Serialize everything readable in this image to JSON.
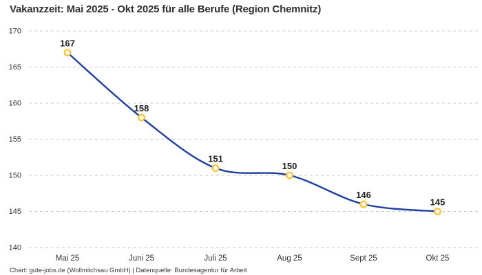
{
  "title": "Vakanzzeit: Mai 2025 - Okt 2025 für alle Berufe (Region Chemnitz)",
  "footer": "Chart: gute-jobs.de (Wollmilchsau GmbH) | Datenquelle: Bundesagentur für Arbeit",
  "colors": {
    "line": "#1e3f9f",
    "marker_ring": "#fdc12d",
    "marker_fill": "#ffffff",
    "grid": "#c9c9c9",
    "axis_text": "#333333",
    "value_label": "#1d1d1d",
    "title_text": "#2f2f2f"
  },
  "chart_data": {
    "type": "line",
    "title": "Vakanzzeit: Mai 2025 - Okt 2025 für alle Berufe (Region Chemnitz)",
    "categories": [
      "Mai 25",
      "Juni 25",
      "Juli 25",
      "Aug 25",
      "Sept 25",
      "Okt 25"
    ],
    "values": [
      167,
      158,
      151,
      150,
      146,
      145
    ],
    "xlabel": "",
    "ylabel": "",
    "ylim": [
      140,
      170
    ],
    "ytick_step": 5,
    "yticks": [
      140,
      145,
      150,
      155,
      160,
      165,
      170
    ],
    "grid": "horizontal-dashed",
    "smooth": true,
    "data_labels": true,
    "legend": "none",
    "source": "Chart: gute-jobs.de (Wollmilchsau GmbH) | Datenquelle: Bundesagentur für Arbeit"
  }
}
